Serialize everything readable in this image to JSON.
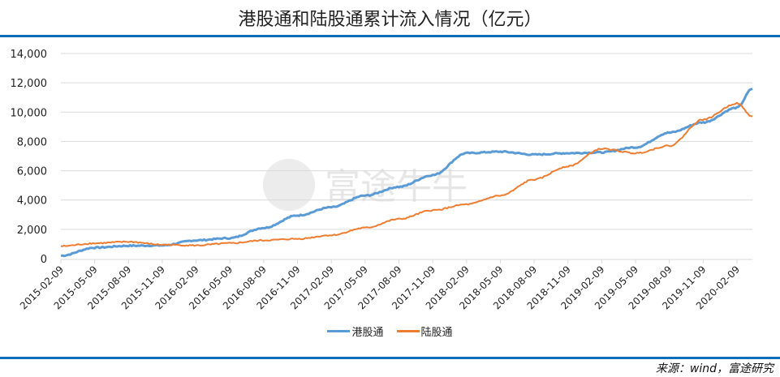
{
  "title": "港股通和陆股通累计流入情况（亿元）",
  "source": "来源：wind，富途研究",
  "watermark": "富途牛牛",
  "legend": {
    "hk": "港股通",
    "lu": "陆股通"
  },
  "colors": {
    "hk": "#5b9bd5",
    "lu": "#ed7d31",
    "accent": "#0e6db8",
    "grid": "#d9d9d9"
  },
  "chart_data": {
    "type": "line",
    "title": "港股通和陆股通累计流入情况（亿元）",
    "xlabel": "",
    "ylabel": "",
    "ylim": [
      0,
      14000
    ],
    "yticks": [
      "0",
      "2,000",
      "4,000",
      "6,000",
      "8,000",
      "10,000",
      "12,000",
      "14,000"
    ],
    "grid": true,
    "legend_position": "bottom",
    "categories": [
      "2015-02-09",
      "2015-05-09",
      "2015-08-09",
      "2015-11-09",
      "2016-02-09",
      "2016-05-09",
      "2016-08-09",
      "2016-11-09",
      "2017-02-09",
      "2017-05-09",
      "2017-08-09",
      "2017-11-09",
      "2018-02-09",
      "2018-05-09",
      "2018-08-09",
      "2018-11-09",
      "2019-02-09",
      "2019-05-09",
      "2019-08-09",
      "2019-11-09",
      "2020-02-09"
    ],
    "series": [
      {
        "name": "港股通",
        "values": [
          200,
          750,
          880,
          900,
          1250,
          1400,
          2100,
          2950,
          3500,
          4300,
          4900,
          5700,
          7200,
          7300,
          7100,
          7200,
          7250,
          7600,
          8600,
          9300,
          10300
        ],
        "end_value": 11600
      },
      {
        "name": "陆股通",
        "values": [
          850,
          1050,
          1150,
          950,
          900,
          1050,
          1250,
          1350,
          1600,
          2100,
          2700,
          3300,
          3700,
          4300,
          5400,
          6300,
          7500,
          7200,
          7700,
          9500,
          10600
        ],
        "end_value": 9700
      }
    ]
  }
}
